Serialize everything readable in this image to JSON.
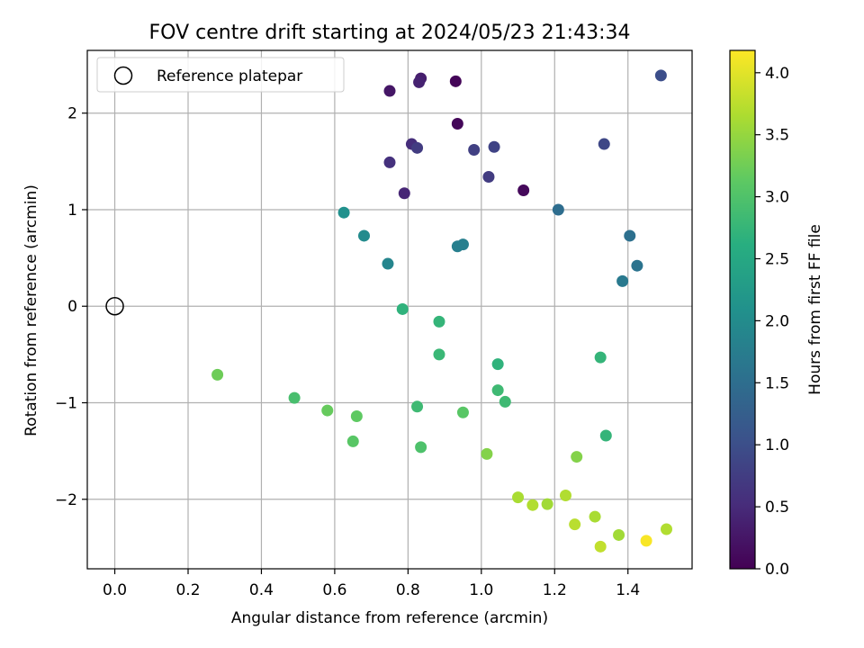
{
  "chart_data": {
    "type": "scatter",
    "title": "FOV centre drift starting at 2024/05/23 21:43:34",
    "xlabel": "Angular distance from reference (arcmin)",
    "ylabel": "Rotation from reference (arcmin)",
    "xlim": [
      -0.075,
      1.575
    ],
    "ylim": [
      -2.72,
      2.65
    ],
    "x_ticks": [
      0.0,
      0.2,
      0.4,
      0.6,
      0.8,
      1.0,
      1.2,
      1.4
    ],
    "x_tick_labels": [
      "0.0",
      "0.2",
      "0.4",
      "0.6",
      "0.8",
      "1.0",
      "1.2",
      "1.4"
    ],
    "y_ticks": [
      -2,
      -1,
      0,
      1,
      2
    ],
    "y_tick_labels": [
      "−2",
      "−1",
      "0",
      "1",
      "2"
    ],
    "grid": true,
    "legend": {
      "placement": "upper-left",
      "entries": [
        "Reference platepar"
      ]
    },
    "reference_point": {
      "x": 0.0,
      "y": 0.0,
      "label": "Reference platepar"
    },
    "colorbar": {
      "label": "Hours from first FF file",
      "colormap": "viridis",
      "range": [
        0.0,
        4.18
      ],
      "ticks": [
        0.0,
        0.5,
        1.0,
        1.5,
        2.0,
        2.5,
        3.0,
        3.5,
        4.0
      ],
      "tick_labels": [
        "0.0",
        "0.5",
        "1.0",
        "1.5",
        "2.0",
        "2.5",
        "3.0",
        "3.5",
        "4.0"
      ]
    },
    "points": [
      {
        "x": 0.93,
        "y": 2.33,
        "c": 0.05
      },
      {
        "x": 0.935,
        "y": 1.89,
        "c": 0.07
      },
      {
        "x": 1.115,
        "y": 1.2,
        "c": 0.1
      },
      {
        "x": 0.75,
        "y": 2.23,
        "c": 0.25
      },
      {
        "x": 0.835,
        "y": 2.36,
        "c": 0.35
      },
      {
        "x": 0.83,
        "y": 2.32,
        "c": 0.4
      },
      {
        "x": 0.79,
        "y": 1.17,
        "c": 0.45
      },
      {
        "x": 0.81,
        "y": 1.68,
        "c": 0.55
      },
      {
        "x": 0.75,
        "y": 1.49,
        "c": 0.6
      },
      {
        "x": 0.825,
        "y": 1.64,
        "c": 0.75
      },
      {
        "x": 1.02,
        "y": 1.34,
        "c": 0.75
      },
      {
        "x": 0.98,
        "y": 1.62,
        "c": 0.8
      },
      {
        "x": 1.035,
        "y": 1.65,
        "c": 0.85
      },
      {
        "x": 1.335,
        "y": 1.68,
        "c": 0.9
      },
      {
        "x": 1.49,
        "y": 2.39,
        "c": 1.0
      },
      {
        "x": 1.21,
        "y": 1.0,
        "c": 1.5
      },
      {
        "x": 1.405,
        "y": 0.73,
        "c": 1.55
      },
      {
        "x": 1.425,
        "y": 0.42,
        "c": 1.6
      },
      {
        "x": 1.385,
        "y": 0.26,
        "c": 1.7
      },
      {
        "x": 0.935,
        "y": 0.62,
        "c": 1.8
      },
      {
        "x": 0.95,
        "y": 0.64,
        "c": 1.8
      },
      {
        "x": 0.745,
        "y": 0.44,
        "c": 1.9
      },
      {
        "x": 0.68,
        "y": 0.73,
        "c": 2.0
      },
      {
        "x": 0.625,
        "y": 0.97,
        "c": 2.1
      },
      {
        "x": 0.785,
        "y": -0.03,
        "c": 2.7
      },
      {
        "x": 0.885,
        "y": -0.16,
        "c": 2.75
      },
      {
        "x": 1.045,
        "y": -0.6,
        "c": 2.7
      },
      {
        "x": 1.325,
        "y": -0.53,
        "c": 2.75
      },
      {
        "x": 1.34,
        "y": -1.34,
        "c": 2.75
      },
      {
        "x": 0.885,
        "y": -0.5,
        "c": 2.8
      },
      {
        "x": 1.045,
        "y": -0.87,
        "c": 2.85
      },
      {
        "x": 1.065,
        "y": -0.99,
        "c": 2.85
      },
      {
        "x": 0.825,
        "y": -1.04,
        "c": 2.85
      },
      {
        "x": 0.49,
        "y": -0.95,
        "c": 2.95
      },
      {
        "x": 0.835,
        "y": -1.46,
        "c": 3.0
      },
      {
        "x": 0.95,
        "y": -1.1,
        "c": 3.1
      },
      {
        "x": 0.66,
        "y": -1.14,
        "c": 3.15
      },
      {
        "x": 0.65,
        "y": -1.4,
        "c": 3.1
      },
      {
        "x": 0.58,
        "y": -1.08,
        "c": 3.2
      },
      {
        "x": 0.28,
        "y": -0.71,
        "c": 3.25
      },
      {
        "x": 1.015,
        "y": -1.53,
        "c": 3.4
      },
      {
        "x": 1.26,
        "y": -1.56,
        "c": 3.4
      },
      {
        "x": 1.1,
        "y": -1.98,
        "c": 3.65
      },
      {
        "x": 1.14,
        "y": -2.06,
        "c": 3.7
      },
      {
        "x": 1.18,
        "y": -2.05,
        "c": 3.6
      },
      {
        "x": 1.23,
        "y": -1.96,
        "c": 3.7
      },
      {
        "x": 1.255,
        "y": -2.26,
        "c": 3.75
      },
      {
        "x": 1.31,
        "y": -2.18,
        "c": 3.65
      },
      {
        "x": 1.325,
        "y": -2.49,
        "c": 3.8
      },
      {
        "x": 1.375,
        "y": -2.37,
        "c": 3.6
      },
      {
        "x": 1.505,
        "y": -2.31,
        "c": 3.7
      },
      {
        "x": 1.45,
        "y": -2.43,
        "c": 4.15
      }
    ]
  }
}
